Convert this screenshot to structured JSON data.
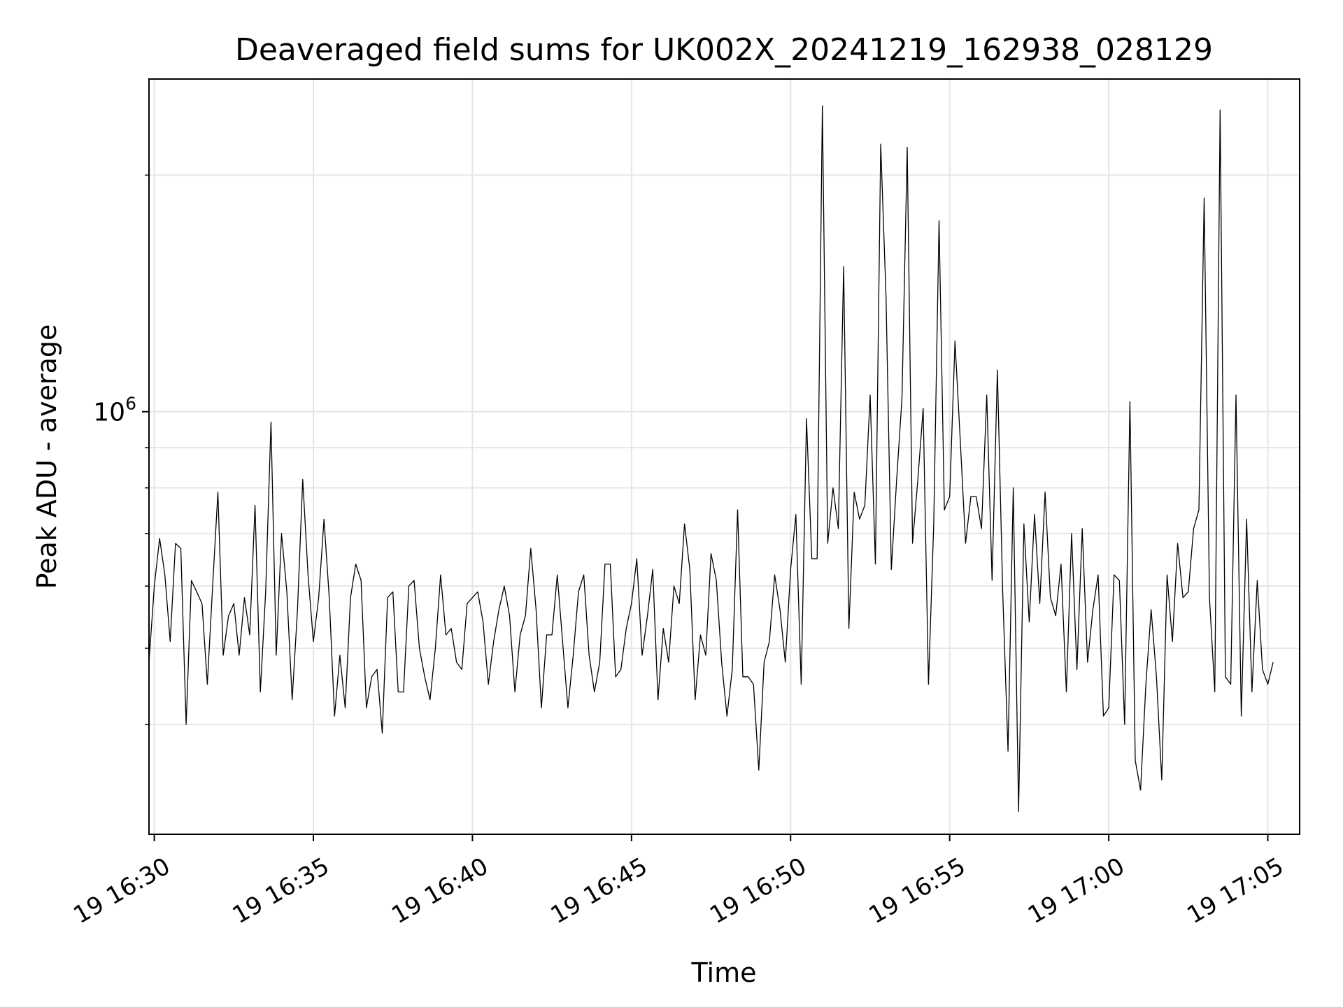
{
  "chart_data": {
    "type": "line",
    "title": "Deaveraged field sums for UK002X_20241219_162938_028129",
    "xlabel": "Time",
    "ylabel": "Peak ADU - average",
    "y_scale": "log",
    "grid": true,
    "line_color": "#000000",
    "xlim": [
      "2024-12-19T16:29:50",
      "2024-12-19T17:06:00"
    ],
    "ylim": [
      290000,
      2650000
    ],
    "x_tick_values": [
      "2024-12-19T16:30:00",
      "2024-12-19T16:35:00",
      "2024-12-19T16:40:00",
      "2024-12-19T16:45:00",
      "2024-12-19T16:50:00",
      "2024-12-19T16:55:00",
      "2024-12-19T17:00:00",
      "2024-12-19T17:05:00"
    ],
    "x_tick_labels": [
      "19 16:30",
      "19 16:35",
      "19 16:40",
      "19 16:45",
      "19 16:50",
      "19 16:55",
      "19 17:00",
      "19 17:05"
    ],
    "y_tick_major": [
      {
        "value": 1000000,
        "base": "10",
        "exp": "6"
      }
    ],
    "y_tick_minor": [
      400000,
      500000,
      600000,
      700000,
      800000,
      900000,
      2000000
    ],
    "x_start": "2024-12-19T16:29:50",
    "x_step_seconds": 10,
    "values": [
      480000,
      600000,
      690000,
      620000,
      510000,
      680000,
      670000,
      400000,
      610000,
      590000,
      570000,
      450000,
      600000,
      790000,
      490000,
      550000,
      570000,
      490000,
      580000,
      520000,
      760000,
      440000,
      590000,
      970000,
      490000,
      700000,
      590000,
      430000,
      560000,
      820000,
      620000,
      510000,
      580000,
      730000,
      580000,
      410000,
      490000,
      420000,
      580000,
      640000,
      610000,
      420000,
      460000,
      470000,
      390000,
      580000,
      590000,
      440000,
      440000,
      600000,
      610000,
      500000,
      460000,
      430000,
      500000,
      620000,
      520000,
      530000,
      480000,
      470000,
      570000,
      580000,
      590000,
      540000,
      450000,
      510000,
      560000,
      600000,
      550000,
      440000,
      520000,
      550000,
      670000,
      560000,
      420000,
      520000,
      520000,
      620000,
      510000,
      420000,
      490000,
      590000,
      620000,
      490000,
      440000,
      480000,
      640000,
      640000,
      460000,
      470000,
      530000,
      570000,
      650000,
      490000,
      550000,
      630000,
      430000,
      530000,
      480000,
      600000,
      570000,
      720000,
      630000,
      430000,
      520000,
      490000,
      660000,
      610000,
      480000,
      410000,
      470000,
      750000,
      460000,
      460000,
      450000,
      350000,
      480000,
      510000,
      620000,
      560000,
      480000,
      630000,
      740000,
      450000,
      980000,
      650000,
      650000,
      2450000,
      680000,
      800000,
      710000,
      1530000,
      530000,
      790000,
      730000,
      760000,
      1050000,
      640000,
      2190000,
      1400000,
      630000,
      820000,
      1040000,
      2170000,
      680000,
      820000,
      1010000,
      450000,
      720000,
      1750000,
      750000,
      780000,
      1230000,
      920000,
      680000,
      780000,
      780000,
      710000,
      1050000,
      610000,
      1130000,
      590000,
      370000,
      800000,
      310000,
      720000,
      540000,
      740000,
      570000,
      790000,
      580000,
      550000,
      640000,
      440000,
      700000,
      470000,
      710000,
      480000,
      560000,
      620000,
      410000,
      420000,
      620000,
      610000,
      400000,
      1030000,
      360000,
      330000,
      450000,
      560000,
      460000,
      340000,
      620000,
      510000,
      680000,
      580000,
      590000,
      710000,
      750000,
      1870000,
      580000,
      440000,
      2420000,
      460000,
      450000,
      1050000,
      410000,
      730000,
      440000,
      610000,
      470000,
      450000,
      480000
    ]
  }
}
